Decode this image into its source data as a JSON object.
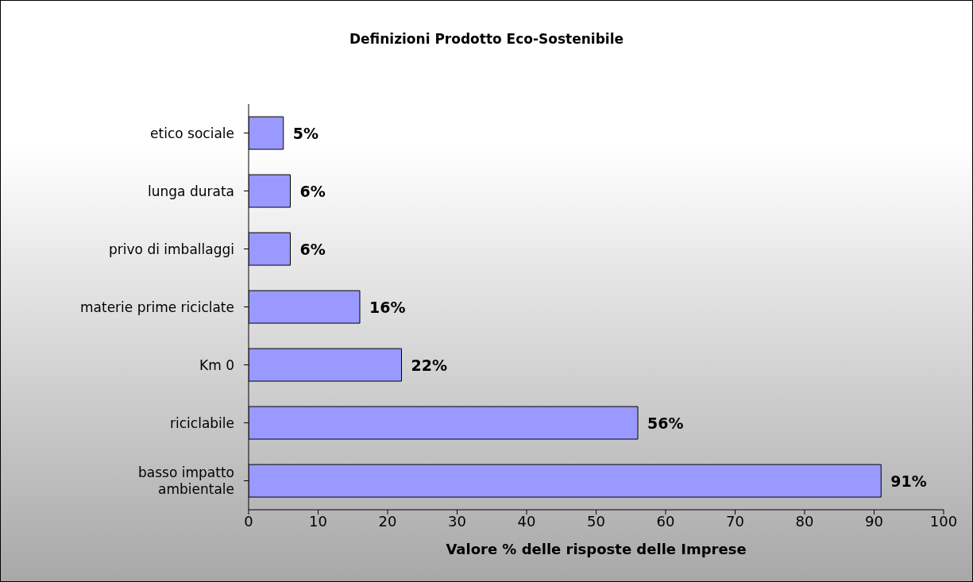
{
  "chart_data": {
    "type": "bar",
    "orientation": "horizontal",
    "title": "Definizioni Prodotto Eco-Sostenibile",
    "xlabel": "Valore % delle risposte delle Imprese",
    "categories": [
      "etico sociale",
      "lunga durata",
      "privo di imballaggi",
      "materie prime riciclate",
      "Km 0",
      "riciclabile",
      "basso impatto ambientale"
    ],
    "values": [
      5,
      6,
      6,
      16,
      22,
      56,
      91
    ],
    "value_labels": [
      "5%",
      "6%",
      "6%",
      "16%",
      "22%",
      "56%",
      "91%"
    ],
    "color": "#9999ff",
    "xlim": [
      0,
      100
    ],
    "xticks": [
      0,
      10,
      20,
      30,
      40,
      50,
      60,
      70,
      80,
      90,
      100
    ]
  }
}
